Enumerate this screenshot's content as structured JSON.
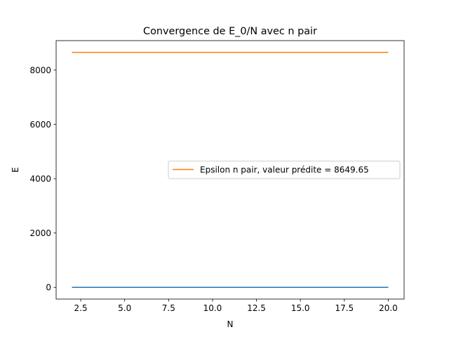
{
  "chart_data": {
    "type": "line",
    "title": "Convergence de E_0/N avec n pair",
    "xlabel": "N",
    "ylabel": "E",
    "xlim": [
      1.1,
      20.9
    ],
    "ylim": [
      -432.5,
      9082.1
    ],
    "xticks": [
      2.5,
      5.0,
      7.5,
      10.0,
      12.5,
      15.0,
      17.5,
      20.0
    ],
    "xtick_labels": [
      "2.5",
      "5.0",
      "7.5",
      "10.0",
      "12.5",
      "15.0",
      "17.5",
      "20.0"
    ],
    "yticks": [
      0,
      2000,
      4000,
      6000,
      8000
    ],
    "ytick_labels": [
      "0",
      "2000",
      "4000",
      "6000",
      "8000"
    ],
    "grid": false,
    "legend_position": "center-right",
    "series": [
      {
        "color": "#1f77b4",
        "x": [
          2,
          20
        ],
        "y": [
          0,
          0
        ]
      },
      {
        "name": "Epsilon n pair, valeur prédite = 8649.65",
        "color": "#ff7f0e",
        "x": [
          2,
          20
        ],
        "y": [
          8649.65,
          8649.65
        ]
      }
    ]
  }
}
